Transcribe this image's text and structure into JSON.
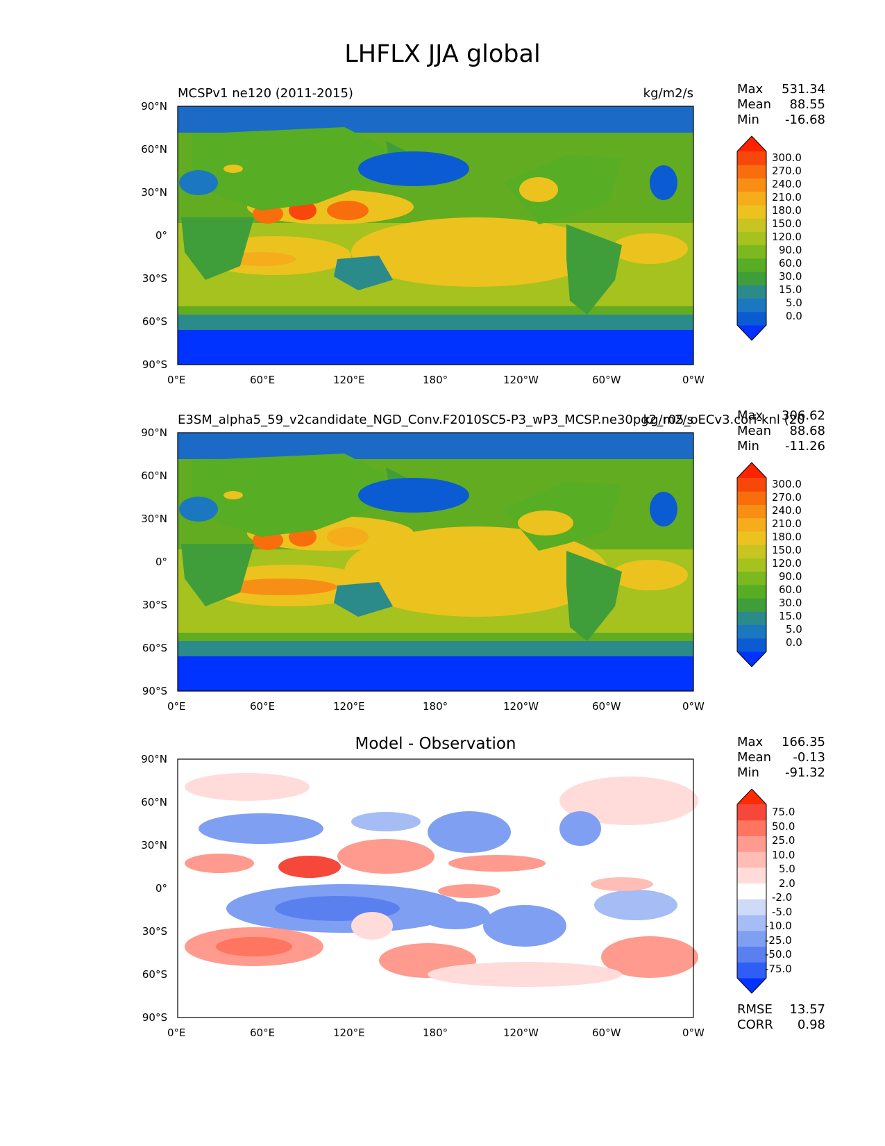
{
  "figure": {
    "title": "LHFLX JJA global"
  },
  "axes": {
    "lat_labels": [
      "90°N",
      "60°N",
      "30°N",
      "0°",
      "30°S",
      "60°S",
      "90°S"
    ],
    "lon_labels": [
      "0°E",
      "60°E",
      "120°E",
      "180°",
      "120°W",
      "60°W",
      "0°W"
    ]
  },
  "panels": [
    {
      "title_left": "MCSPv1 ne120 (2011-2015)",
      "units": "kg/m2/s",
      "stats": {
        "max_label": "Max",
        "max": "531.34",
        "mean_label": "Mean",
        "mean": "88.55",
        "min_label": "Min",
        "min": "-16.68"
      }
    },
    {
      "title_left": "E3SM_alpha5_59_v2candidate_NGD_Conv.F2010SC5-P3_wP3_MCSP.ne30pg2_r05_oECv3.cori-knl (20",
      "units": "kg/m2/s",
      "stats": {
        "max_label": "Max",
        "max": "306.62",
        "mean_label": "Mean",
        "mean": "88.68",
        "min_label": "Min",
        "min": "-11.26"
      }
    },
    {
      "title_center": "Model - Observation",
      "stats": {
        "max_label": "Max",
        "max": "166.35",
        "mean_label": "Mean",
        "mean": "-0.13",
        "min_label": "Min",
        "min": "-91.32"
      },
      "metrics": {
        "rmse_label": "RMSE",
        "rmse": "13.57",
        "corr_label": "CORR",
        "corr": "0.98"
      }
    }
  ],
  "colorbars": {
    "field": {
      "labels": [
        "300.0",
        "270.0",
        "240.0",
        "210.0",
        "180.0",
        "150.0",
        "120.0",
        "90.0",
        "60.0",
        "30.0",
        "15.0",
        "5.0",
        "0.0"
      ],
      "colors": [
        "#0033ff",
        "#0b5bd3",
        "#1b78c0",
        "#2b8a8a",
        "#3f9e3a",
        "#57ad24",
        "#7cb820",
        "#a5c21f",
        "#c8c421",
        "#ecc21f",
        "#f5ad1b",
        "#f78f14",
        "#f86d0c",
        "#f8470a",
        "#ff2200"
      ]
    },
    "diff": {
      "labels": [
        "75.0",
        "50.0",
        "25.0",
        "10.0",
        "5.0",
        "2.0",
        "-2.0",
        "-5.0",
        "-10.0",
        "-25.0",
        "-50.0",
        "-75.0"
      ],
      "colors": [
        "#0033ff",
        "#2f5ef6",
        "#5a80f0",
        "#7f9ff2",
        "#a6bcf5",
        "#cfdaf9",
        "#ffffff",
        "#ffdcd9",
        "#ffbdb5",
        "#ff9a8e",
        "#ff7560",
        "#f5483a",
        "#ff2a00"
      ]
    }
  },
  "chart_data": [
    {
      "type": "heatmap",
      "title": "MCSPv1 ne120 (2011-2015)",
      "variable": "LHFLX",
      "season": "JJA",
      "units": "kg/m2/s",
      "xlim": [
        0,
        360
      ],
      "ylim": [
        -90,
        90
      ],
      "contour_levels": [
        0,
        5,
        15,
        30,
        60,
        90,
        120,
        150,
        180,
        210,
        240,
        270,
        300
      ],
      "max": 531.34,
      "mean": 88.55,
      "min": -16.68
    },
    {
      "type": "heatmap",
      "title": "E3SM_alpha5_59_v2candidate_NGD_Conv.F2010SC5-P3_wP3_MCSP.ne30pg2_r05_oECv3.cori-knl (20",
      "variable": "LHFLX",
      "season": "JJA",
      "units": "kg/m2/s",
      "xlim": [
        0,
        360
      ],
      "ylim": [
        -90,
        90
      ],
      "contour_levels": [
        0,
        5,
        15,
        30,
        60,
        90,
        120,
        150,
        180,
        210,
        240,
        270,
        300
      ],
      "max": 306.62,
      "mean": 88.68,
      "min": -11.26
    },
    {
      "type": "heatmap",
      "title": "Model - Observation",
      "xlim": [
        0,
        360
      ],
      "ylim": [
        -90,
        90
      ],
      "contour_levels": [
        -75,
        -50,
        -25,
        -10,
        -5,
        -2,
        2,
        5,
        10,
        25,
        50,
        75
      ],
      "max": 166.35,
      "mean": -0.13,
      "min": -91.32,
      "rmse": 13.57,
      "corr": 0.98
    }
  ]
}
